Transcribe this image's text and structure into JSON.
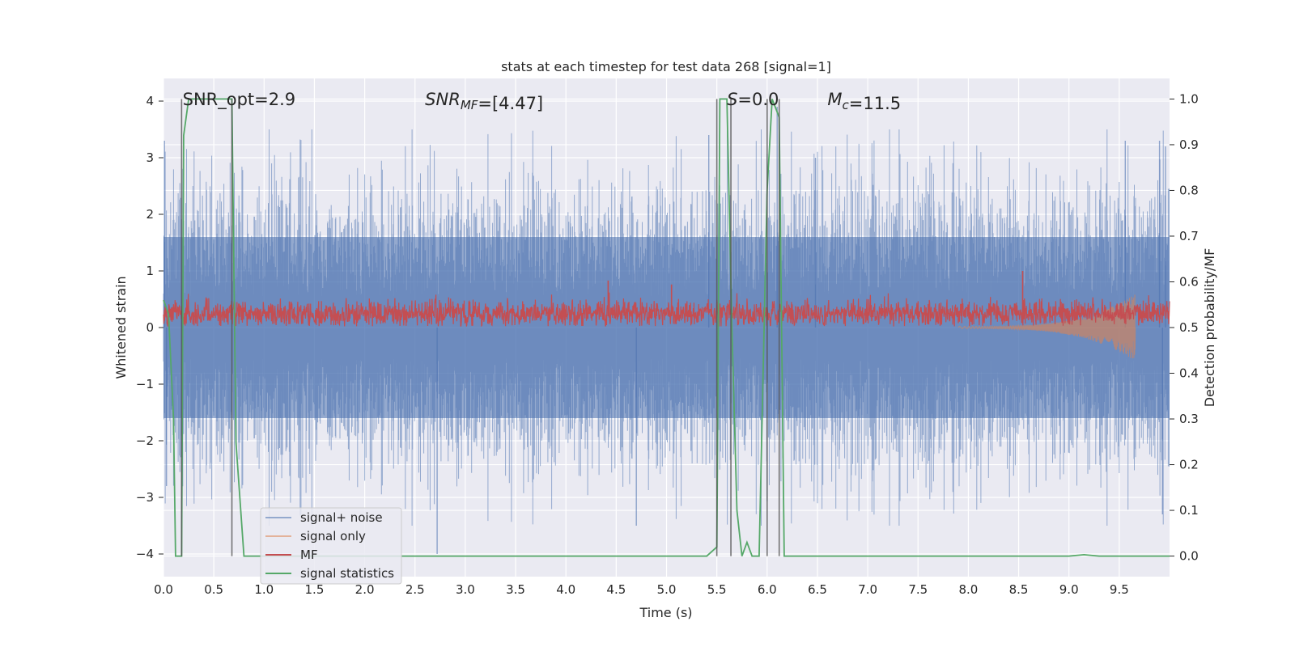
{
  "chart_data": {
    "type": "line",
    "title": "stats at each timestep for test data 268 [signal=1]",
    "xlabel": "Time (s)",
    "ylabel": "Whitened strain",
    "y2label": "Detection probability/MF",
    "xlim": [
      0,
      10
    ],
    "ylim": [
      -4.4,
      4.4
    ],
    "y2lim": [
      -0.045,
      1.045
    ],
    "xticks": [
      "0.0",
      "0.5",
      "1.0",
      "1.5",
      "2.0",
      "2.5",
      "3.0",
      "3.5",
      "4.0",
      "4.5",
      "5.0",
      "5.5",
      "6.0",
      "6.5",
      "7.0",
      "7.5",
      "8.0",
      "8.5",
      "9.0",
      "9.5"
    ],
    "yticks": [
      "4",
      "3",
      "2",
      "1",
      "0",
      "−1",
      "−2",
      "−3",
      "−4"
    ],
    "y2ticks": [
      "1.0",
      "0.9",
      "0.8",
      "0.7",
      "0.6",
      "0.5",
      "0.4",
      "0.3",
      "0.2",
      "0.1",
      "0.0"
    ],
    "grid": true,
    "legend_position": "lower-left",
    "annotations": [
      {
        "parts": [
          {
            "t": "SNR_opt=2.9",
            "i": false
          }
        ],
        "x": 0.19
      },
      {
        "parts": [
          {
            "t": "SNR",
            "i": true
          },
          {
            "t": "MF",
            "i": true,
            "sub": true
          },
          {
            "t": "=[4.47]",
            "i": false
          }
        ],
        "x": 2.6
      },
      {
        "parts": [
          {
            "t": "S",
            "i": true
          },
          {
            "t": "=0.0",
            "i": false
          }
        ],
        "x": 5.6
      },
      {
        "parts": [
          {
            "t": "M",
            "i": true
          },
          {
            "t": "c",
            "i": true,
            "sub": true
          },
          {
            "t": "=11.5",
            "i": false
          }
        ],
        "x": 6.6
      }
    ],
    "detection_markers": [
      0.18,
      0.68,
      5.5,
      5.64,
      6.0,
      6.12
    ],
    "series": [
      {
        "name": "signal+ noise",
        "color": "#4c72b0",
        "axis": "left",
        "envelope_abs": 1.6,
        "peak_abs": 3.5,
        "spikes": [
          [
            0.01,
            3.3
          ],
          [
            0.03,
            -2.8
          ],
          [
            2.72,
            -4.0
          ],
          [
            4.7,
            -3.5
          ],
          [
            5.42,
            3.4
          ],
          [
            6.1,
            3.9
          ],
          [
            6.48,
            3.0
          ],
          [
            9.56,
            3.3
          ],
          [
            9.9,
            3.3
          ],
          [
            9.93,
            -3.3
          ],
          [
            9.96,
            3.2
          ]
        ]
      },
      {
        "name": "signal only",
        "color": "#dd8452",
        "axis": "left",
        "chirp_start": 7.9,
        "chirp_end": 9.66,
        "chirp_max_amp": 0.57
      },
      {
        "name": "MF",
        "color": "#c44e52",
        "axis": "left",
        "baseline": 0.25,
        "amplitude": 0.2,
        "spikes": [
          [
            4.42,
            0.83
          ],
          [
            5.05,
            0.76
          ],
          [
            8.54,
            1.0
          ]
        ]
      },
      {
        "name": "signal statistics",
        "color": "#55a868",
        "axis": "right",
        "points": [
          [
            0.0,
            0.56
          ],
          [
            0.05,
            0.53
          ],
          [
            0.1,
            0.3
          ],
          [
            0.12,
            0.0
          ],
          [
            0.15,
            0.0
          ],
          [
            0.18,
            0.0
          ],
          [
            0.2,
            0.92
          ],
          [
            0.25,
            1.0
          ],
          [
            0.5,
            1.0
          ],
          [
            0.68,
            1.0
          ],
          [
            0.72,
            0.25
          ],
          [
            0.8,
            0.0
          ],
          [
            5.4,
            0.0
          ],
          [
            5.5,
            0.02
          ],
          [
            5.53,
            1.0
          ],
          [
            5.6,
            1.0
          ],
          [
            5.65,
            0.5
          ],
          [
            5.7,
            0.1
          ],
          [
            5.75,
            0.0
          ],
          [
            5.8,
            0.03
          ],
          [
            5.85,
            0.0
          ],
          [
            5.92,
            0.0
          ],
          [
            6.0,
            0.8
          ],
          [
            6.05,
            1.0
          ],
          [
            6.12,
            0.96
          ],
          [
            6.17,
            0.0
          ],
          [
            9.0,
            0.0
          ],
          [
            9.15,
            0.003
          ],
          [
            9.3,
            0.0
          ],
          [
            10.0,
            0.0
          ]
        ]
      }
    ]
  }
}
